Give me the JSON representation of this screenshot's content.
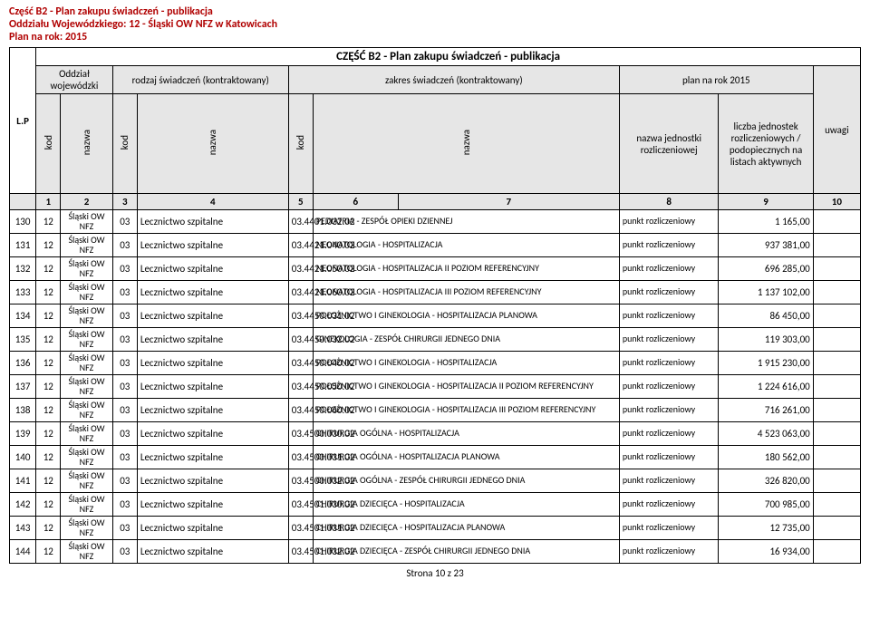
{
  "header": {
    "line1": "Część B2 - Plan zakupu świadczeń - publikacja",
    "line2": "Oddziału Wojewódzkiego: 12 - Śląski OW NFZ w Katowicach",
    "line3": "Plan na rok: 2015"
  },
  "table_header": {
    "lp": "L.P",
    "center_title": "CZĘŚĆ B2 - Plan zakupu świadczeń - publikacja",
    "col_oddzial": "Oddział wojewódzki",
    "col_rodzaj": "rodzaj świadczeń (kontraktowany)",
    "col_zakres": "zakres świadczeń (kontraktowany)",
    "col_plan": "plan na rok 2015",
    "sub_kod": "kod",
    "sub_nazwa": "nazwa",
    "sub_jednostka": "nazwa jednostki rozliczeniowej",
    "sub_liczba": "liczba jednostek rozliczeniowych / podopiecznych na listach aktywnych",
    "sub_uwagi": "uwagi"
  },
  "colnums": [
    "1",
    "2",
    "3",
    "4",
    "5",
    "6",
    "7",
    "8",
    "9",
    "10"
  ],
  "rows": [
    {
      "lp": "130",
      "kod1": "12",
      "nazwa1": "Śląski OW NFZ",
      "kod2": "03",
      "nazwa2": "Lecznictwo szpitalne",
      "kod3": "03.4401.032.02",
      "nazwa3": "PEDIATRIA - ZESPÓŁ OPIEKI DZIENNEJ",
      "jedn": "punkt rozliczeniowy",
      "val": "1 165,00",
      "uw": ""
    },
    {
      "lp": "131",
      "kod1": "12",
      "nazwa1": "Śląski OW NFZ",
      "kod2": "03",
      "nazwa2": "Lecznictwo szpitalne",
      "kod3": "03.4421.040.02",
      "nazwa3": "NEONATOLOGIA  -  HOSPITALIZACJA",
      "jedn": "punkt rozliczeniowy",
      "val": "937 381,00",
      "uw": ""
    },
    {
      "lp": "132",
      "kod1": "12",
      "nazwa1": "Śląski OW NFZ",
      "kod2": "03",
      "nazwa2": "Lecznictwo szpitalne",
      "kod3": "03.4421.050.02",
      "nazwa3": "NEONATOLOGIA - HOSPITALIZACJA II POZIOM REFERENCYJNY",
      "jedn": "punkt rozliczeniowy",
      "val": "696 285,00",
      "uw": ""
    },
    {
      "lp": "133",
      "kod1": "12",
      "nazwa1": "Śląski OW NFZ",
      "kod2": "03",
      "nazwa2": "Lecznictwo szpitalne",
      "kod3": "03.4421.060.02",
      "nazwa3": "NEONATOLOGIA - HOSPITALIZACJA III POZIOM REFERENCYJNY",
      "jedn": "punkt rozliczeniowy",
      "val": "1 137 102,00",
      "uw": ""
    },
    {
      "lp": "134",
      "kod1": "12",
      "nazwa1": "Śląski OW NFZ",
      "kod2": "03",
      "nazwa2": "Lecznictwo szpitalne",
      "kod3": "03.4450.031.02",
      "nazwa3": "POŁOŻNICTWO I GINEKOLOGIA - HOSPITALIZACJA PLANOWA",
      "jedn": "punkt rozliczeniowy",
      "val": "86 450,00",
      "uw": ""
    },
    {
      "lp": "135",
      "kod1": "12",
      "nazwa1": "Śląski OW NFZ",
      "kod2": "03",
      "nazwa2": "Lecznictwo szpitalne",
      "kod3": "03.4450.032.02",
      "nazwa3": "GINEKOLOGIA -  ZESPÓŁ CHIRURGII JEDNEGO DNIA",
      "jedn": "punkt rozliczeniowy",
      "val": "119 303,00",
      "uw": ""
    },
    {
      "lp": "136",
      "kod1": "12",
      "nazwa1": "Śląski OW NFZ",
      "kod2": "03",
      "nazwa2": "Lecznictwo szpitalne",
      "kod3": "03.4450.040.02",
      "nazwa3": "POŁOŻNICTWO I GINEKOLOGIA - HOSPITALIZACJA",
      "jedn": "punkt rozliczeniowy",
      "val": "1 915 230,00",
      "uw": ""
    },
    {
      "lp": "137",
      "kod1": "12",
      "nazwa1": "Śląski OW NFZ",
      "kod2": "03",
      "nazwa2": "Lecznictwo szpitalne",
      "kod3": "03.4450.050.02",
      "nazwa3": "POŁOŻNICTWO I GINEKOLOGIA - HOSPITALIZACJA II POZIOM REFERENCYJNY",
      "jedn": "punkt rozliczeniowy",
      "val": "1 224 616,00",
      "uw": ""
    },
    {
      "lp": "138",
      "kod1": "12",
      "nazwa1": "Śląski OW NFZ",
      "kod2": "03",
      "nazwa2": "Lecznictwo szpitalne",
      "kod3": "03.4450.060.02",
      "nazwa3": "POŁOŻNICTWO I GINEKOLOGIA - HOSPITALIZACJA III POZIOM REFERENCYJNY",
      "jedn": "punkt rozliczeniowy",
      "val": "716 261,00",
      "uw": ""
    },
    {
      "lp": "139",
      "kod1": "12",
      "nazwa1": "Śląski OW NFZ",
      "kod2": "03",
      "nazwa2": "Lecznictwo szpitalne",
      "kod3": "03.4500.030.02",
      "nazwa3": "CHIRURGIA OGÓLNA - HOSPITALIZACJA",
      "jedn": "punkt rozliczeniowy",
      "val": "4 523 063,00",
      "uw": ""
    },
    {
      "lp": "140",
      "kod1": "12",
      "nazwa1": "Śląski OW NFZ",
      "kod2": "03",
      "nazwa2": "Lecznictwo szpitalne",
      "kod3": "03.4500.031.02",
      "nazwa3": "CHIRURGIA OGÓLNA - HOSPITALIZACJA PLANOWA",
      "jedn": "punkt rozliczeniowy",
      "val": "180 562,00",
      "uw": ""
    },
    {
      "lp": "141",
      "kod1": "12",
      "nazwa1": "Śląski OW NFZ",
      "kod2": "03",
      "nazwa2": "Lecznictwo szpitalne",
      "kod3": "03.4500.032.02",
      "nazwa3": "CHIRURGIA OGÓLNA -  ZESPÓŁ CHIRURGII JEDNEGO DNIA",
      "jedn": "punkt rozliczeniowy",
      "val": "326 820,00",
      "uw": ""
    },
    {
      "lp": "142",
      "kod1": "12",
      "nazwa1": "Śląski OW NFZ",
      "kod2": "03",
      "nazwa2": "Lecznictwo szpitalne",
      "kod3": "03.4501.030.02",
      "nazwa3": "CHIRURGIA DZIECIĘCA - HOSPITALIZACJA",
      "jedn": "punkt rozliczeniowy",
      "val": "700 985,00",
      "uw": ""
    },
    {
      "lp": "143",
      "kod1": "12",
      "nazwa1": "Śląski OW NFZ",
      "kod2": "03",
      "nazwa2": "Lecznictwo szpitalne",
      "kod3": "03.4501.031.02",
      "nazwa3": "CHIRURGIA DZIECIĘCA - HOSPITALIZACJA PLANOWA",
      "jedn": "punkt rozliczeniowy",
      "val": "12 735,00",
      "uw": ""
    },
    {
      "lp": "144",
      "kod1": "12",
      "nazwa1": "Śląski OW NFZ",
      "kod2": "03",
      "nazwa2": "Lecznictwo szpitalne",
      "kod3": "03.4501.032.02",
      "nazwa3": "CHIRURGIA DZIECIĘCA - ZESPÓŁ CHIRURGII JEDNEGO DNIA",
      "jedn": "punkt rozliczeniowy",
      "val": "16 934,00",
      "uw": ""
    }
  ],
  "footer": "Strona 10 z 23",
  "colors": {
    "title": "#b00000",
    "header_bg": "#e6e6e6",
    "border": "#000000"
  }
}
